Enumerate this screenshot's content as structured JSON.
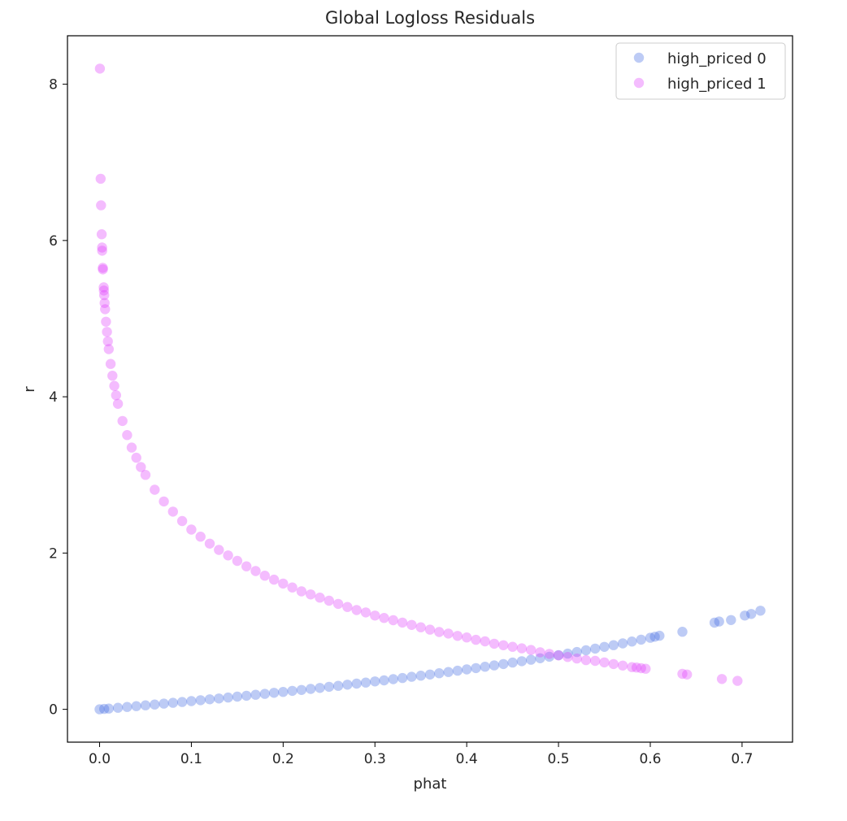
{
  "chart_data": {
    "type": "scatter",
    "title": "Global Logloss Residuals",
    "xlabel": "phat",
    "ylabel": "r",
    "xlim": [
      -0.035,
      0.755
    ],
    "ylim": [
      -0.42,
      8.62
    ],
    "x_ticks": [
      0.0,
      0.1,
      0.2,
      0.3,
      0.4,
      0.5,
      0.6,
      0.7
    ],
    "x_tick_labels": [
      "0.0",
      "0.1",
      "0.2",
      "0.3",
      "0.4",
      "0.5",
      "0.6",
      "0.7"
    ],
    "y_ticks": [
      0,
      2,
      4,
      6,
      8
    ],
    "y_tick_labels": [
      "0",
      "2",
      "4",
      "6",
      "8"
    ],
    "grid": false,
    "legend_position": "top-right",
    "marker_alpha": 0.35,
    "series": [
      {
        "name": "high_priced 0",
        "color": "#4169e1",
        "x": [
          0.0,
          0.005,
          0.01,
          0.02,
          0.03,
          0.04,
          0.05,
          0.06,
          0.07,
          0.08,
          0.09,
          0.1,
          0.11,
          0.12,
          0.13,
          0.14,
          0.15,
          0.16,
          0.17,
          0.18,
          0.19,
          0.2,
          0.21,
          0.22,
          0.23,
          0.24,
          0.25,
          0.26,
          0.27,
          0.28,
          0.29,
          0.3,
          0.31,
          0.32,
          0.33,
          0.34,
          0.35,
          0.36,
          0.37,
          0.38,
          0.39,
          0.4,
          0.41,
          0.42,
          0.43,
          0.44,
          0.45,
          0.46,
          0.47,
          0.48,
          0.49,
          0.5,
          0.51,
          0.52,
          0.53,
          0.54,
          0.55,
          0.56,
          0.57,
          0.58,
          0.59,
          0.6,
          0.605,
          0.61,
          0.635,
          0.67,
          0.675,
          0.688,
          0.703,
          0.71,
          0.72
        ],
        "y": [
          0.0,
          0.005,
          0.01,
          0.02,
          0.03,
          0.041,
          0.051,
          0.062,
          0.073,
          0.083,
          0.094,
          0.105,
          0.117,
          0.128,
          0.139,
          0.151,
          0.163,
          0.174,
          0.186,
          0.198,
          0.211,
          0.223,
          0.236,
          0.248,
          0.261,
          0.274,
          0.288,
          0.301,
          0.315,
          0.329,
          0.343,
          0.357,
          0.371,
          0.386,
          0.401,
          0.416,
          0.431,
          0.446,
          0.462,
          0.478,
          0.494,
          0.511,
          0.528,
          0.545,
          0.562,
          0.58,
          0.598,
          0.616,
          0.635,
          0.654,
          0.673,
          0.693,
          0.713,
          0.734,
          0.755,
          0.777,
          0.799,
          0.821,
          0.844,
          0.868,
          0.892,
          0.916,
          0.929,
          0.942,
          0.993,
          1.109,
          1.124,
          1.143,
          1.2,
          1.221,
          1.262
        ]
      },
      {
        "name": "high_priced 1",
        "color": "#e040fb",
        "x": [
          0.0003,
          0.0011,
          0.0016,
          0.0023,
          0.0027,
          0.0028,
          0.0035,
          0.0036,
          0.0045,
          0.0047,
          0.005,
          0.0055,
          0.006,
          0.007,
          0.008,
          0.009,
          0.01,
          0.012,
          0.014,
          0.016,
          0.018,
          0.02,
          0.025,
          0.03,
          0.035,
          0.04,
          0.045,
          0.05,
          0.06,
          0.07,
          0.08,
          0.09,
          0.1,
          0.11,
          0.12,
          0.13,
          0.14,
          0.15,
          0.16,
          0.17,
          0.18,
          0.19,
          0.2,
          0.21,
          0.22,
          0.23,
          0.24,
          0.25,
          0.26,
          0.27,
          0.28,
          0.29,
          0.3,
          0.31,
          0.32,
          0.33,
          0.34,
          0.35,
          0.36,
          0.37,
          0.38,
          0.39,
          0.4,
          0.41,
          0.42,
          0.43,
          0.44,
          0.45,
          0.46,
          0.47,
          0.48,
          0.49,
          0.5,
          0.51,
          0.52,
          0.53,
          0.54,
          0.55,
          0.56,
          0.57,
          0.58,
          0.585,
          0.59,
          0.595,
          0.635,
          0.64,
          0.678,
          0.695
        ],
        "y": [
          8.2,
          6.79,
          6.45,
          6.08,
          5.91,
          5.87,
          5.65,
          5.63,
          5.4,
          5.36,
          5.3,
          5.2,
          5.12,
          4.96,
          4.83,
          4.71,
          4.61,
          4.42,
          4.27,
          4.14,
          4.02,
          3.91,
          3.69,
          3.51,
          3.35,
          3.22,
          3.1,
          3.0,
          2.81,
          2.66,
          2.53,
          2.41,
          2.3,
          2.21,
          2.12,
          2.04,
          1.97,
          1.9,
          1.83,
          1.77,
          1.71,
          1.66,
          1.61,
          1.56,
          1.51,
          1.47,
          1.43,
          1.39,
          1.35,
          1.31,
          1.27,
          1.24,
          1.2,
          1.17,
          1.14,
          1.11,
          1.08,
          1.05,
          1.02,
          0.99,
          0.97,
          0.94,
          0.92,
          0.89,
          0.87,
          0.84,
          0.82,
          0.8,
          0.78,
          0.76,
          0.73,
          0.71,
          0.69,
          0.67,
          0.65,
          0.63,
          0.62,
          0.6,
          0.58,
          0.56,
          0.54,
          0.535,
          0.527,
          0.519,
          0.454,
          0.446,
          0.388,
          0.364
        ]
      }
    ]
  }
}
